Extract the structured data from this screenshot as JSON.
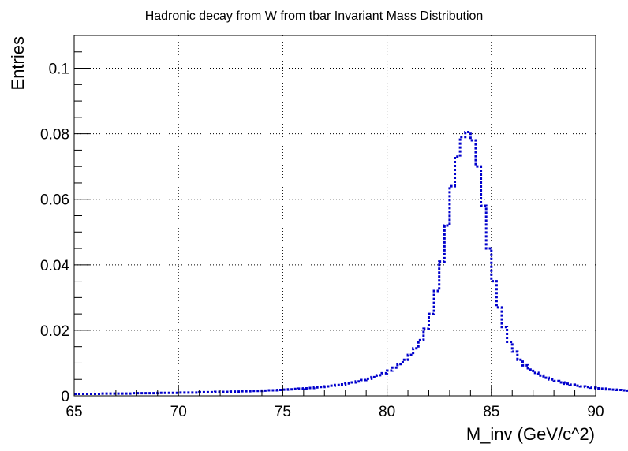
{
  "chart_data": {
    "type": "line",
    "title": "Hadronic decay from W from tbar Invariant Mass Distribution",
    "xlabel": "M_inv (GeV/c^2)",
    "ylabel": "Entries",
    "xlim": [
      65,
      90
    ],
    "ylim": [
      0,
      0.11
    ],
    "x_ticks": [
      65,
      70,
      75,
      80,
      85,
      90
    ],
    "x_tick_labels": [
      "65",
      "70",
      "75",
      "80",
      "85",
      "90"
    ],
    "y_ticks": [
      0,
      0.02,
      0.04,
      0.06,
      0.08,
      0.1
    ],
    "y_tick_labels": [
      "0",
      "0.02",
      "0.04",
      "0.06",
      "0.08",
      "0.1"
    ],
    "grid": true,
    "legend": "none",
    "style": "dotted-step-histogram",
    "bin_width": 0.25,
    "series": [
      {
        "color": "#0000cc",
        "bin_start": 65,
        "values": [
          0.0006,
          0.0006,
          0.0006,
          0.0006,
          0.0006,
          0.0007,
          0.0007,
          0.0007,
          0.0007,
          0.0007,
          0.0007,
          0.0008,
          0.0008,
          0.0008,
          0.0008,
          0.0008,
          0.0009,
          0.0009,
          0.0009,
          0.0009,
          0.001,
          0.001,
          0.001,
          0.001,
          0.0011,
          0.0011,
          0.0011,
          0.0012,
          0.0012,
          0.0012,
          0.0013,
          0.0013,
          0.0014,
          0.0014,
          0.0015,
          0.0015,
          0.0016,
          0.0017,
          0.0017,
          0.0018,
          0.0019,
          0.002,
          0.0021,
          0.0022,
          0.0023,
          0.0024,
          0.0026,
          0.0027,
          0.0029,
          0.0031,
          0.0033,
          0.0035,
          0.0038,
          0.0041,
          0.0044,
          0.0048,
          0.0052,
          0.0057,
          0.0063,
          0.0069,
          0.0077,
          0.0086,
          0.0097,
          0.011,
          0.0125,
          0.0145,
          0.017,
          0.0205,
          0.025,
          0.032,
          0.041,
          0.052,
          0.064,
          0.073,
          0.079,
          0.0805,
          0.078,
          0.07,
          0.058,
          0.045,
          0.035,
          0.027,
          0.021,
          0.0165,
          0.0135,
          0.011,
          0.0093,
          0.008,
          0.007,
          0.0062,
          0.0055,
          0.005,
          0.0045,
          0.0041,
          0.0037,
          0.0034,
          0.0031,
          0.0029,
          0.0027,
          0.0025,
          0.0023,
          0.0022,
          0.002,
          0.0019,
          0.0018,
          0.0017,
          0.0016,
          0.0015,
          0.0014,
          0.0014,
          0.0013,
          0.0012,
          0.0012,
          0.0011,
          0.0011,
          0.001,
          0.001,
          0.001,
          0.0009,
          0.0009
        ]
      }
    ]
  }
}
